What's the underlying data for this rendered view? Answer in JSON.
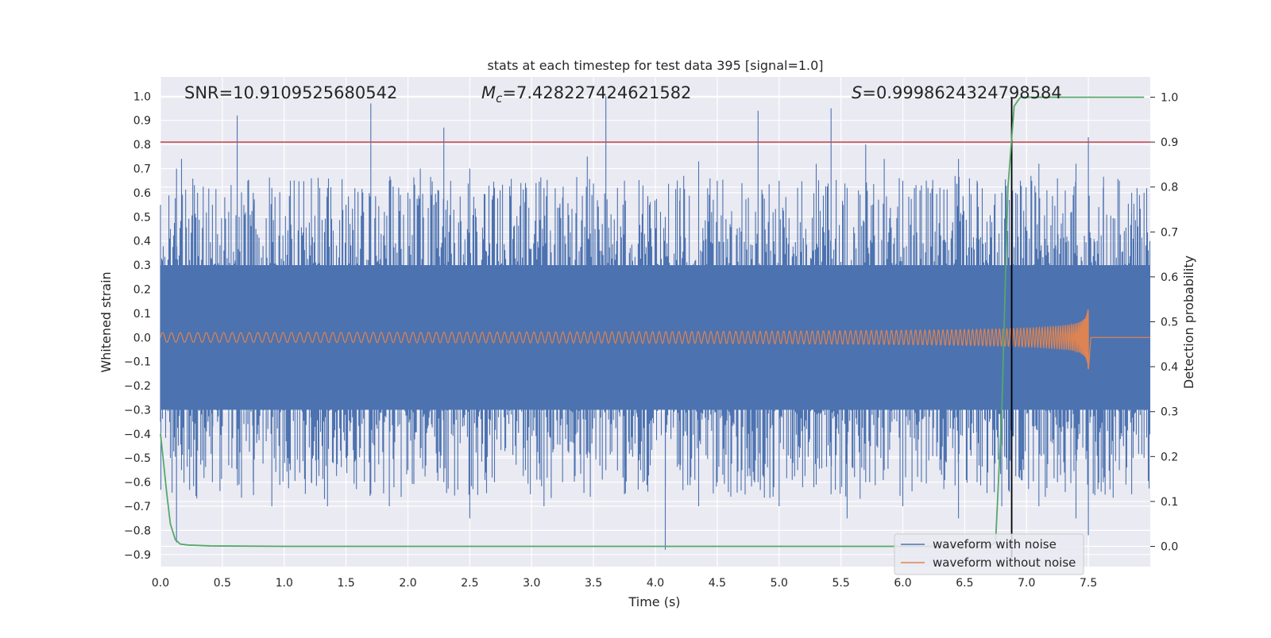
{
  "chart_data": {
    "type": "line",
    "title": "stats at each timestep for test data 395 [signal=1.0]",
    "xlabel": "Time (s)",
    "ylabel": "Whitened strain",
    "y2label": "Detection probability",
    "xlim": [
      0.0,
      8.0
    ],
    "ylim": [
      -0.95,
      1.08
    ],
    "y2lim": [
      -0.045,
      1.045
    ],
    "x_ticks": [
      "0.0",
      "0.5",
      "1.0",
      "1.5",
      "2.0",
      "2.5",
      "3.0",
      "3.5",
      "4.0",
      "4.5",
      "5.0",
      "5.5",
      "6.0",
      "6.5",
      "7.0",
      "7.5"
    ],
    "y_ticks": [
      "1.0",
      "0.9",
      "0.8",
      "0.7",
      "0.6",
      "0.5",
      "0.4",
      "0.3",
      "0.2",
      "0.1",
      "0.0",
      "−0.1",
      "−0.2",
      "−0.3",
      "−0.4",
      "−0.5",
      "−0.6",
      "−0.7",
      "−0.8",
      "−0.9"
    ],
    "y2_ticks": [
      "1.0",
      "0.9",
      "0.8",
      "0.7",
      "0.6",
      "0.5",
      "0.4",
      "0.3",
      "0.2",
      "0.1",
      "0.0"
    ],
    "grid": true,
    "legend_position": "lower-right",
    "annotations": {
      "snr": "SNR=10.9109525680542",
      "mc_symbol": "M",
      "mc_sub": "c",
      "mc_value": "=7.428227424621582",
      "s_symbol": "S",
      "s_value": "=0.9998624324798584"
    },
    "threshold": {
      "value": 0.9,
      "axis": "right",
      "color": "#c44e52"
    },
    "detection_time": {
      "x": 6.88,
      "color": "#000000"
    },
    "series": [
      {
        "name": "waveform with noise",
        "color": "#4c72b0",
        "axis": "left",
        "kind": "noise",
        "core_band": [
          -0.3,
          0.3
        ],
        "spikes": [
          [
            0.0,
            0.55,
            -0.35
          ],
          [
            0.08,
            0.45,
            -0.5
          ],
          [
            0.13,
            0.7,
            -0.85
          ],
          [
            0.17,
            0.74,
            -0.55
          ],
          [
            0.3,
            0.6,
            -0.45
          ],
          [
            0.42,
            0.55,
            -0.6
          ],
          [
            0.62,
            0.92,
            -0.5
          ],
          [
            0.75,
            0.6,
            -0.6
          ],
          [
            0.9,
            0.62,
            -0.7
          ],
          [
            1.05,
            0.65,
            -0.55
          ],
          [
            1.22,
            0.66,
            -0.6
          ],
          [
            1.35,
            0.62,
            -0.7
          ],
          [
            1.5,
            0.55,
            -0.5
          ],
          [
            1.7,
            0.97,
            -0.55
          ],
          [
            1.85,
            0.65,
            -0.7
          ],
          [
            2.0,
            0.6,
            -0.55
          ],
          [
            2.1,
            0.7,
            -0.5
          ],
          [
            2.29,
            0.87,
            -0.6
          ],
          [
            2.5,
            0.7,
            -0.75
          ],
          [
            2.7,
            0.62,
            -0.6
          ],
          [
            2.95,
            0.64,
            -0.55
          ],
          [
            3.1,
            0.62,
            -0.7
          ],
          [
            3.25,
            0.58,
            -0.6
          ],
          [
            3.45,
            0.75,
            -0.5
          ],
          [
            3.6,
            1.0,
            -0.55
          ],
          [
            3.75,
            0.65,
            -0.65
          ],
          [
            3.9,
            0.63,
            -0.6
          ],
          [
            4.08,
            0.5,
            -0.88
          ],
          [
            4.2,
            0.62,
            -0.55
          ],
          [
            4.35,
            0.73,
            -0.7
          ],
          [
            4.5,
            0.6,
            -0.6
          ],
          [
            4.7,
            0.64,
            -0.55
          ],
          [
            4.83,
            0.94,
            -0.6
          ],
          [
            5.0,
            0.65,
            -0.7
          ],
          [
            5.15,
            0.62,
            -0.55
          ],
          [
            5.3,
            0.72,
            -0.6
          ],
          [
            5.42,
            0.95,
            -0.65
          ],
          [
            5.55,
            0.62,
            -0.75
          ],
          [
            5.7,
            0.8,
            -0.6
          ],
          [
            5.85,
            0.74,
            -0.55
          ],
          [
            6.0,
            0.65,
            -0.7
          ],
          [
            6.15,
            0.63,
            -0.6
          ],
          [
            6.3,
            0.62,
            -0.55
          ],
          [
            6.45,
            0.74,
            -0.75
          ],
          [
            6.6,
            0.65,
            -0.6
          ],
          [
            6.8,
            0.6,
            -0.7
          ],
          [
            6.95,
            0.65,
            -0.55
          ],
          [
            7.1,
            0.72,
            -0.7
          ],
          [
            7.25,
            0.66,
            -0.6
          ],
          [
            7.4,
            0.72,
            -0.75
          ],
          [
            7.5,
            0.83,
            -0.82
          ],
          [
            7.62,
            0.62,
            -0.6
          ],
          [
            7.75,
            0.65,
            -0.55
          ],
          [
            7.85,
            0.6,
            -0.65
          ],
          [
            7.95,
            0.6,
            -0.5
          ]
        ]
      },
      {
        "name": "waveform without noise",
        "color": "#dd8452",
        "axis": "left",
        "kind": "chirp",
        "coalescence_time": 7.5,
        "start_amplitude": 0.02,
        "peak_amplitude": [
          0.25,
          -0.3
        ],
        "start_frequency_hz": 14
      },
      {
        "name": "",
        "color": "#55a868",
        "axis": "right",
        "kind": "probability",
        "x": [
          0.0,
          0.02,
          0.05,
          0.08,
          0.12,
          0.16,
          0.22,
          0.4,
          1.0,
          3.0,
          5.0,
          6.0,
          6.7,
          6.75,
          6.8,
          6.85,
          6.9,
          6.95,
          7.0,
          7.5,
          7.95
        ],
        "values": [
          0.25,
          0.2,
          0.12,
          0.05,
          0.015,
          0.005,
          0.003,
          0.001,
          0.0,
          0.0,
          0.0,
          0.0,
          0.0,
          0.01,
          0.3,
          0.8,
          0.98,
          1.0,
          1.0,
          1.0,
          1.0
        ]
      }
    ]
  }
}
